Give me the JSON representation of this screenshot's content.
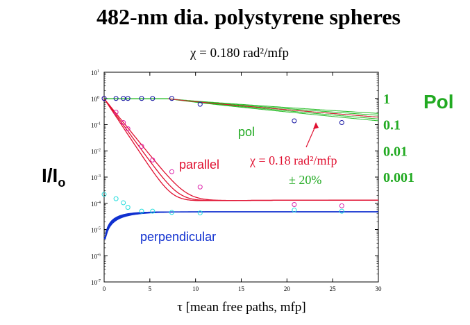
{
  "chart_data": {
    "type": "scatter",
    "title": "482-nm dia. polystyrene spheres",
    "subtitle": "χ = 0.180 rad²/mfp",
    "xlabel": "τ  [mean free  paths, mfp]",
    "ylabel": "I/I",
    "ylabel_sub": "o",
    "xlim": [
      0,
      30
    ],
    "ylim": [
      1e-07,
      10
    ],
    "yscale": "log",
    "grid": false,
    "x_ticks": [
      "0",
      "5",
      "10",
      "15",
      "20",
      "25",
      "30"
    ],
    "y_ticks": [
      "-7",
      "-6",
      "-5",
      "-4",
      "-3",
      "-2",
      "-1",
      "0",
      "1"
    ],
    "y_tick_base": "10",
    "secondary_axis": {
      "label": "Pol",
      "ticks": [
        "1",
        "0.1",
        "0.01",
        "0.001"
      ],
      "color": "#22aa22"
    },
    "colors": {
      "pol": "#22bb22",
      "parallel_line": "#e01030",
      "parallel_points": "#dd22aa",
      "perpendicular_line": "#1030d0",
      "perpendicular_points": "#22dddd",
      "pol_points": "#1010a0"
    },
    "series": [
      {
        "name": "parallel",
        "kind": "points",
        "x": [
          0,
          1.3,
          2.1,
          2.6,
          4.1,
          5.3,
          7.4,
          10.5,
          20.8,
          26
        ],
        "y": [
          1,
          0.3,
          0.12,
          0.07,
          0.015,
          0.0045,
          0.0016,
          0.00042,
          9e-05,
          8e-05
        ]
      },
      {
        "name": "perpendicular",
        "kind": "points",
        "x": [
          0,
          1.3,
          2.1,
          2.6,
          4.1,
          5.3,
          7.4,
          10.5,
          20.8,
          26
        ],
        "y": [
          0.00022,
          0.00015,
          0.000105,
          7e-05,
          5e-05,
          5e-05,
          4.5e-05,
          4.3e-05,
          5.5e-05,
          5e-05
        ]
      },
      {
        "name": "pol",
        "kind": "points",
        "x": [
          0,
          1.3,
          2.1,
          2.6,
          4.1,
          5.3,
          7.4,
          10.5,
          20.8,
          26
        ],
        "y": [
          1,
          1,
          1,
          1,
          1,
          1,
          1,
          0.6,
          0.14,
          0.12
        ]
      }
    ],
    "annotations": [
      {
        "text": "parallel"
      },
      {
        "text": "perpendicular"
      },
      {
        "text": "pol"
      },
      {
        "text": "χ = 0.18 rad²/mfp"
      },
      {
        "text": "± 20%"
      }
    ]
  }
}
